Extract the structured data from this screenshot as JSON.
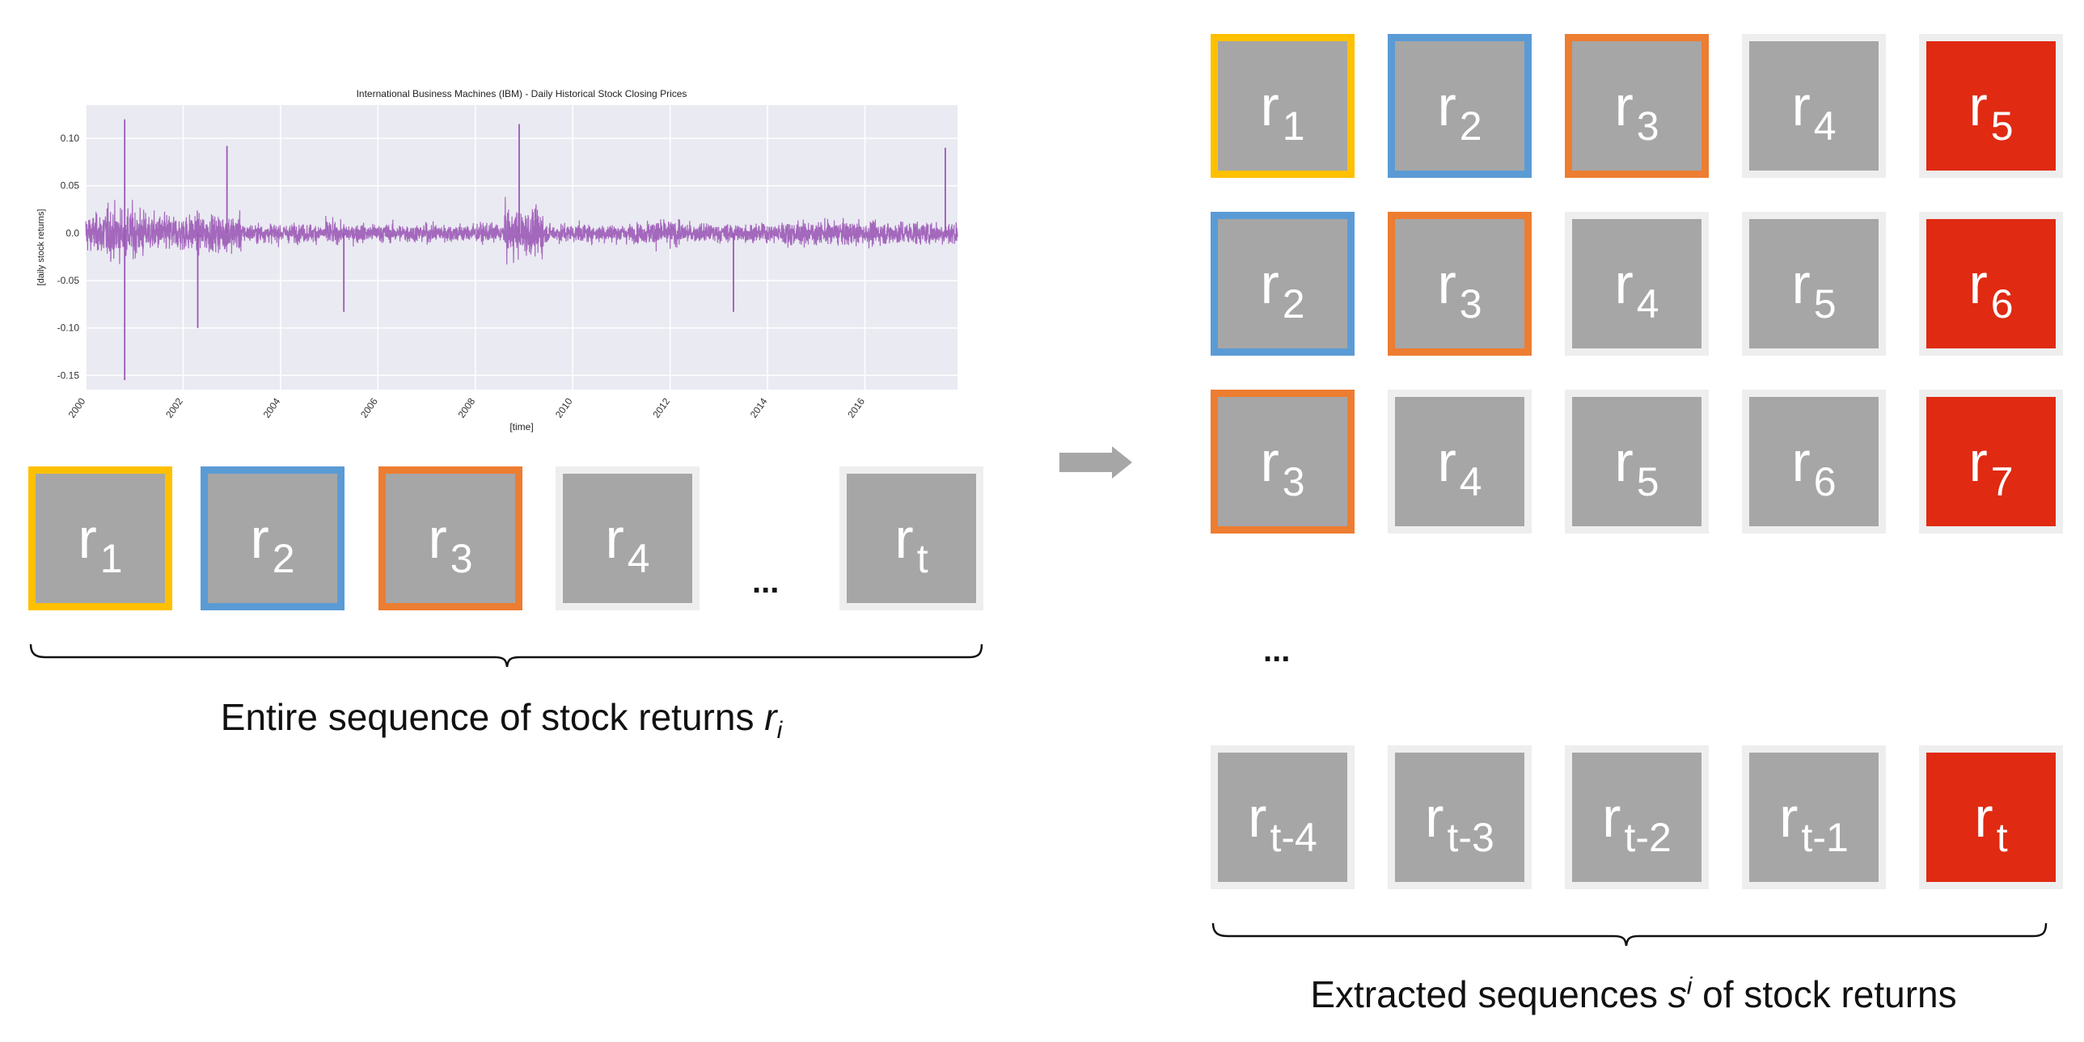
{
  "chart_data": {
    "type": "line",
    "title": "International Business Machines (IBM) - Daily Historical Stock Closing Prices",
    "xlabel": "[time]",
    "ylabel": "[daily stock returns]",
    "xlim": [
      2000,
      2017.9
    ],
    "ylim": [
      -0.165,
      0.135
    ],
    "x_ticks": [
      "2000",
      "2002",
      "2004",
      "2006",
      "2008",
      "2010",
      "2012",
      "2014",
      "2016"
    ],
    "y_ticks": [
      "0.10",
      "0.05",
      "0.0",
      "-0.05",
      "-0.10",
      "-0.15"
    ],
    "y_tick_values": [
      0.1,
      0.05,
      0.0,
      -0.05,
      -0.1,
      -0.15
    ],
    "grid": true,
    "series": [
      {
        "color": "#9b59b6",
        "sampling": "daily returns 2000-2017 (volatile around 0)"
      }
    ],
    "notable_points": [
      {
        "x": 2000.8,
        "y": 0.12
      },
      {
        "x": 2000.8,
        "y": -0.155
      },
      {
        "x": 2002.9,
        "y": 0.092
      },
      {
        "x": 2002.3,
        "y": -0.1
      },
      {
        "x": 2005.3,
        "y": -0.083
      },
      {
        "x": 2008.9,
        "y": 0.115
      },
      {
        "x": 2013.3,
        "y": -0.083
      },
      {
        "x": 2017.65,
        "y": 0.09
      }
    ]
  },
  "left_sequence": {
    "items": [
      {
        "main": "r",
        "sub": "1"
      },
      {
        "main": "r",
        "sub": "2"
      },
      {
        "main": "r",
        "sub": "3"
      },
      {
        "main": "r",
        "sub": "4"
      },
      {
        "main": "r",
        "sub": "t"
      }
    ],
    "ellipsis": "...",
    "caption_prefix": "Entire sequence of stock returns ",
    "caption_var": "r",
    "caption_sub": "i"
  },
  "right_sequences": {
    "rows": [
      [
        {
          "main": "r",
          "sub": "1"
        },
        {
          "main": "r",
          "sub": "2"
        },
        {
          "main": "r",
          "sub": "3"
        },
        {
          "main": "r",
          "sub": "4"
        },
        {
          "main": "r",
          "sub": "5"
        }
      ],
      [
        {
          "main": "r",
          "sub": "2"
        },
        {
          "main": "r",
          "sub": "3"
        },
        {
          "main": "r",
          "sub": "4"
        },
        {
          "main": "r",
          "sub": "5"
        },
        {
          "main": "r",
          "sub": "6"
        }
      ],
      [
        {
          "main": "r",
          "sub": "3"
        },
        {
          "main": "r",
          "sub": "4"
        },
        {
          "main": "r",
          "sub": "5"
        },
        {
          "main": "r",
          "sub": "6"
        },
        {
          "main": "r",
          "sub": "7"
        }
      ],
      [
        {
          "main": "r",
          "sub": "t-4"
        },
        {
          "main": "r",
          "sub": "t-3"
        },
        {
          "main": "r",
          "sub": "t-2"
        },
        {
          "main": "r",
          "sub": "t-1"
        },
        {
          "main": "r",
          "sub": "t"
        }
      ]
    ],
    "ellipsis": "...",
    "caption_prefix": "Extracted sequences ",
    "caption_var": "s",
    "caption_sup": "i",
    "caption_suffix": " of stock returns"
  },
  "colors": {
    "box_fill": "#a6a6a6",
    "plain_border": "#eeeeee",
    "yellow_border": "#ffc000",
    "blue_border": "#5b9bd5",
    "orange_border": "#ed7d31",
    "target_fill": "#e02a12",
    "arrow": "#a6a6a6"
  }
}
